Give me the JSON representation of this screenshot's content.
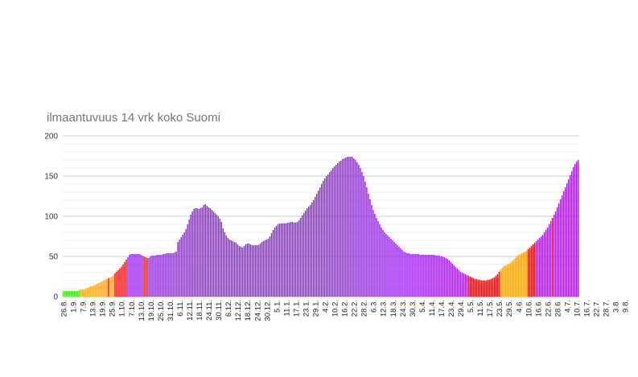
{
  "chart_data": {
    "type": "bar",
    "title": "ilmaantuvuus 14 vrk koko Suomi",
    "xlabel": "",
    "ylabel": "",
    "ylim": [
      0,
      200
    ],
    "yticks": [
      0,
      50,
      100,
      150,
      200
    ],
    "grid": true,
    "colors": {
      "green": "#44dd22",
      "orange": "#ffa520",
      "red": "#ee1111",
      "purple": "#9a1ff0",
      "major_grid": "#c8c8c8",
      "minor_grid": "#ebebeb"
    },
    "color_bands": [
      {
        "from": 0,
        "to": 10,
        "color": "green"
      },
      {
        "from": 11,
        "to": 27,
        "color": "orange"
      },
      {
        "from": 28,
        "to": 28,
        "color": "red"
      },
      {
        "from": 29,
        "to": 31,
        "color": "orange"
      },
      {
        "from": 32,
        "to": 39,
        "color": "red"
      },
      {
        "from": 40,
        "to": 49,
        "color": "purple"
      },
      {
        "from": 50,
        "to": 52,
        "color": "red"
      },
      {
        "from": 53,
        "to": 250,
        "color": "purple"
      },
      {
        "from": 251,
        "to": 270,
        "color": "red"
      },
      {
        "from": 271,
        "to": 287,
        "color": "orange"
      },
      {
        "from": 288,
        "to": 292,
        "color": "red"
      },
      {
        "from": 293,
        "to": 302,
        "color": "purple"
      },
      {
        "from": 303,
        "to": 303,
        "color": "red"
      },
      {
        "from": 304,
        "to": 348,
        "color": "purple"
      }
    ],
    "x_tick_labels": [
      "26.8.",
      "1.9.",
      "7.9.",
      "13.9.",
      "19.9.",
      "25.9.",
      "1.10.",
      "7.10.",
      "13.10.",
      "19.10.",
      "25.10.",
      "31.10.",
      "6.11.",
      "12.11.",
      "18.11.",
      "24.11.",
      "30.11.",
      "6.12.",
      "12.12.",
      "18.12.",
      "24.12.",
      "30.12.",
      "5.1.",
      "11.1.",
      "17.1.",
      "23.1.",
      "29.1.",
      "4.2.",
      "10.2.",
      "16.2.",
      "22.2.",
      "28.2.",
      "6.3.",
      "12.3.",
      "18.3.",
      "24.3.",
      "30.3.",
      "5.4.",
      "11.4.",
      "17.4.",
      "23.4.",
      "29.4.",
      "5.5.",
      "11.5.",
      "17.5.",
      "23.5.",
      "29.5.",
      "4.6.",
      "10.6.",
      "16.6.",
      "22.6.",
      "28.6.",
      "4.7.",
      "10.7.",
      "16.7.",
      "22.7.",
      "28.7.",
      "3.8.",
      "9.8."
    ],
    "x_tick_index": [
      0,
      6,
      12,
      18,
      24,
      30,
      36,
      42,
      48,
      54,
      60,
      66,
      72,
      78,
      84,
      90,
      96,
      102,
      108,
      114,
      120,
      126,
      132,
      138,
      144,
      150,
      156,
      162,
      168,
      174,
      180,
      186,
      192,
      198,
      204,
      210,
      216,
      222,
      228,
      234,
      240,
      246,
      252,
      258,
      264,
      270,
      276,
      282,
      288,
      294,
      300,
      306,
      312,
      318,
      324,
      330,
      336,
      342,
      348
    ],
    "series": [
      {
        "values": [
          7,
          7,
          7,
          7,
          7,
          7,
          7,
          7,
          7,
          7,
          8,
          9,
          9,
          9,
          10,
          11,
          12,
          13,
          13,
          14,
          15,
          16,
          17,
          18,
          19,
          20,
          21,
          22,
          23,
          24,
          25,
          26,
          29,
          31,
          33,
          35,
          37,
          40,
          43,
          46,
          49,
          52,
          53,
          53,
          53,
          53,
          53,
          53,
          52,
          51,
          50,
          49,
          48,
          48,
          50,
          51,
          51,
          51,
          52,
          52,
          52,
          52,
          53,
          53,
          54,
          54,
          54,
          54,
          54,
          55,
          56,
          68,
          71,
          74,
          77,
          80,
          84,
          90,
          96,
          102,
          106,
          109,
          110,
          110,
          109,
          110,
          111,
          114,
          115,
          113,
          111,
          110,
          108,
          106,
          104,
          102,
          100,
          97,
          93,
          85,
          80,
          76,
          73,
          71,
          70,
          69,
          68,
          67,
          65,
          63,
          62,
          61,
          63,
          65,
          66,
          66,
          65,
          64,
          64,
          64,
          64,
          64,
          66,
          68,
          69,
          70,
          71,
          72,
          75,
          79,
          83,
          86,
          88,
          90,
          91,
          91,
          91,
          91,
          91,
          92,
          92,
          93,
          93,
          92,
          92,
          93,
          95,
          98,
          101,
          104,
          107,
          110,
          112,
          114,
          117,
          120,
          124,
          128,
          132,
          136,
          140,
          144,
          147,
          150,
          152,
          155,
          157,
          160,
          162,
          164,
          166,
          168,
          169,
          171,
          172,
          173,
          174,
          174,
          174,
          174,
          172,
          170,
          167,
          164,
          160,
          155,
          150,
          143,
          136,
          128,
          121,
          114,
          108,
          103,
          98,
          94,
          90,
          86,
          83,
          80,
          78,
          76,
          74,
          72,
          70,
          68,
          66,
          64,
          62,
          60,
          58,
          56,
          55,
          54,
          54,
          53,
          53,
          53,
          53,
          53,
          53,
          52,
          52,
          52,
          52,
          52,
          52,
          52,
          52,
          52,
          52,
          51,
          51,
          51,
          50,
          50,
          49,
          48,
          47,
          45,
          43,
          41,
          39,
          37,
          35,
          33,
          31,
          30,
          29,
          28,
          27,
          26,
          25,
          24,
          23,
          22,
          22,
          21,
          21,
          20,
          20,
          20,
          20,
          21,
          21,
          22,
          23,
          24,
          26,
          28,
          31,
          34,
          36,
          38,
          39,
          40,
          41,
          42,
          44,
          46,
          48,
          50,
          52,
          53,
          54,
          55,
          56,
          57,
          59,
          61,
          63,
          65,
          67,
          69,
          71,
          73,
          75,
          77,
          80,
          83,
          86,
          90,
          94,
          98,
          102,
          106,
          111,
          116,
          121,
          126,
          131,
          136,
          141,
          146,
          151,
          156,
          161,
          165,
          168,
          170
        ]
      }
    ]
  }
}
